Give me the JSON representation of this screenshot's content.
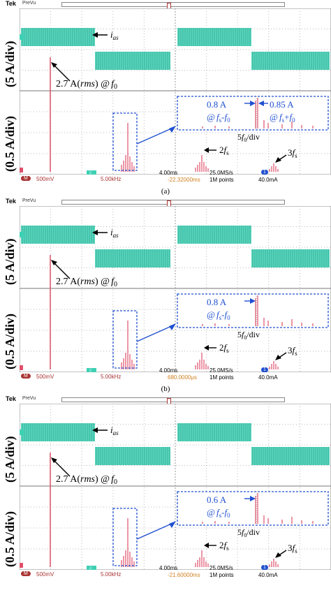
{
  "panels": [
    {
      "caption": "(a)",
      "status": {
        "ch_m_scale": "500mV",
        "freq_scale": "5.00kHz",
        "time_div": "4.00ms",
        "sample_rate": "25.0MS/s",
        "time_offset": "-22.32000ms",
        "record": "1M points",
        "trigger_level": "40.0mA",
        "ch_indicator": "1",
        "ch2_label": "2",
        "m_label": "M"
      },
      "annotations": {
        "ias": "i",
        "ias_sub": "as",
        "fund": "2.7 A(",
        "fund_rms": "rms",
        "fund_tail": ") @",
        "fund_f": "f",
        "fund_sub": "0",
        "zoom_left_val": "0.8 A",
        "zoom_left_at": "@",
        "zoom_left_f": "f",
        "zoom_left_sub": "s",
        "zoom_left_minus": "-",
        "zoom_left_f0": "f",
        "zoom_left_f0sub": "0",
        "zoom_right_val": "0.85 A",
        "zoom_right_at": "@",
        "zoom_right_f": "f",
        "zoom_right_sub": "s",
        "zoom_right_plus": "+",
        "zoom_right_f0": "f",
        "zoom_right_f0sub": "0",
        "div_label": "5",
        "div_f": "f",
        "div_sub": "0",
        "div_tail": "/div",
        "twofs": "2",
        "twofs_f": "f",
        "twofs_sub": "s",
        "threefs": "3",
        "threefs_f": "f",
        "threefs_sub": "s"
      }
    },
    {
      "caption": "(b)",
      "status": {
        "ch_m_scale": "500mV",
        "freq_scale": "5.00kHz",
        "time_div": "4.00ms",
        "sample_rate": "25.0MS/s",
        "time_offset": "680.0000μs",
        "record": "1M points",
        "trigger_level": "40.0mA",
        "ch_indicator": "1",
        "ch2_label": "2",
        "m_label": "M"
      },
      "annotations": {
        "ias": "i",
        "ias_sub": "as",
        "fund": "2.7 A(",
        "fund_rms": "rms",
        "fund_tail": ") @",
        "fund_f": "f",
        "fund_sub": "0",
        "zoom_left_val": "0.8 A",
        "zoom_left_at": "@",
        "zoom_left_f": "f",
        "zoom_left_sub": "s",
        "zoom_left_minus": "-",
        "zoom_left_f0": "f",
        "zoom_left_f0sub": "0",
        "div_label": "5",
        "div_f": "f",
        "div_sub": "0",
        "div_tail": "/div",
        "twofs": "2",
        "twofs_f": "f",
        "twofs_sub": "s",
        "threefs": "3",
        "threefs_f": "f",
        "threefs_sub": "s"
      }
    },
    {
      "caption": "",
      "status": {
        "ch_m_scale": "500mV",
        "freq_scale": "5.00kHz",
        "time_div": "4.00ms",
        "sample_rate": "25.0MS/s",
        "time_offset": "-21.60000ms",
        "record": "1M points",
        "trigger_level": "40.0mA",
        "ch_indicator": "1",
        "ch2_label": "2",
        "m_label": "M"
      },
      "annotations": {
        "ias": "i",
        "ias_sub": "as",
        "fund": "2.7 A(",
        "fund_rms": "rms",
        "fund_tail": ") @",
        "fund_f": "f",
        "fund_sub": "0",
        "zoom_left_val": "0.6 A",
        "zoom_left_at": "@",
        "zoom_left_f": "f",
        "zoom_left_sub": "s",
        "zoom_left_minus": "-",
        "zoom_left_f0": "f",
        "zoom_left_f0sub": "0",
        "div_label": "5",
        "div_f": "f",
        "div_sub": "0",
        "div_tail": "/div",
        "twofs": "2",
        "twofs_f": "f",
        "twofs_sub": "s",
        "threefs": "3",
        "threefs_f": "f",
        "threefs_sub": "s"
      }
    }
  ],
  "header": {
    "brand": "Tek",
    "mode": "PreVu"
  },
  "ylabels": {
    "top": "(5 A/div)",
    "bottom": "(0.5 A/div)"
  },
  "colors": {
    "waveform": "#3fd0b4",
    "spectrum": "#e0506a",
    "annotation_blue": "#2050d0",
    "grid": "#bbbbbb"
  }
}
